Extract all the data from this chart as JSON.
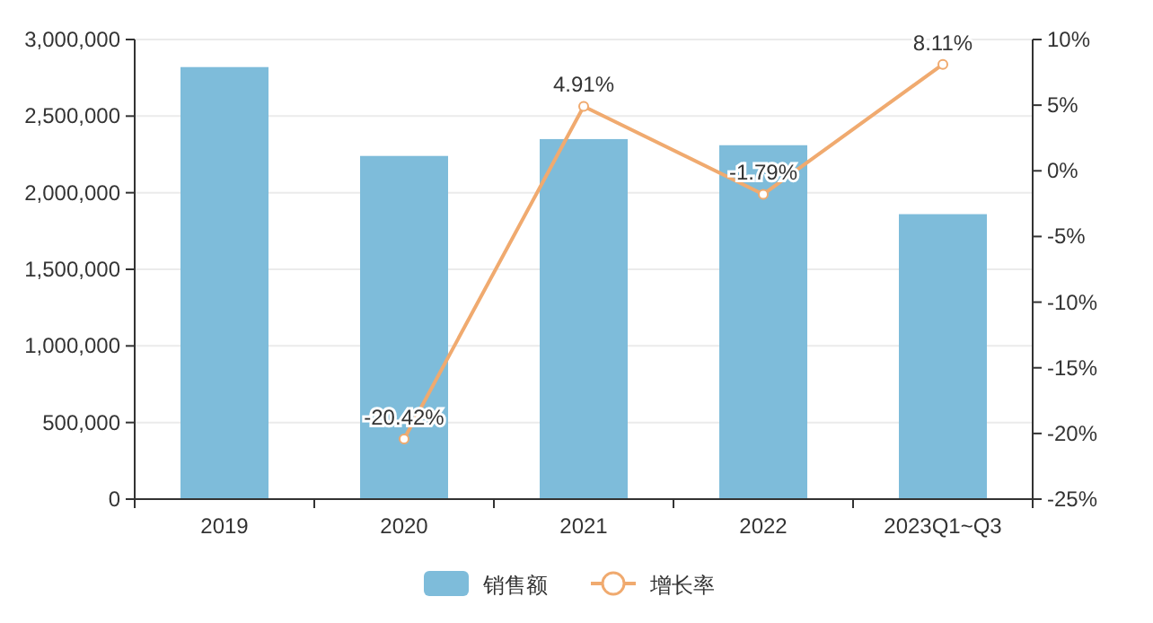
{
  "chart_data": {
    "type": "bar",
    "categories": [
      "2019",
      "2020",
      "2021",
      "2022",
      "2023Q1~Q3"
    ],
    "series": [
      {
        "name": "销售额",
        "color": "#7ebcda",
        "values": [
          2820000,
          2240000,
          2350000,
          2310000,
          1860000
        ]
      },
      {
        "name": "增长率",
        "type": "line",
        "axis": "y2",
        "color": "#f0aa6f",
        "values": [
          null,
          -20.42,
          4.91,
          -1.79,
          8.11
        ],
        "value_labels": [
          null,
          "-20.42%",
          "4.91%",
          "-1.79%",
          "8.11%"
        ]
      }
    ],
    "ylim": [
      0,
      3000000
    ],
    "yticks": [
      {
        "value": 0,
        "label": "0"
      },
      {
        "value": 500000,
        "label": "500,000"
      },
      {
        "value": 1000000,
        "label": "1,000,000"
      },
      {
        "value": 1500000,
        "label": "1,500,000"
      },
      {
        "value": 2000000,
        "label": "2,000,000"
      },
      {
        "value": 2500000,
        "label": "2,500,000"
      },
      {
        "value": 3000000,
        "label": "3,000,000"
      }
    ],
    "y2lim": [
      -25,
      10
    ],
    "y2ticks": [
      {
        "value": -25,
        "label": "-25%"
      },
      {
        "value": -20,
        "label": "-20%"
      },
      {
        "value": -15,
        "label": "-15%"
      },
      {
        "value": -10,
        "label": "-10%"
      },
      {
        "value": -5,
        "label": "-5%"
      },
      {
        "value": 0,
        "label": "0%"
      },
      {
        "value": 5,
        "label": "5%"
      },
      {
        "value": 10,
        "label": "10%"
      }
    ],
    "grid": "y",
    "legend": "bottom",
    "marker": "circle"
  }
}
